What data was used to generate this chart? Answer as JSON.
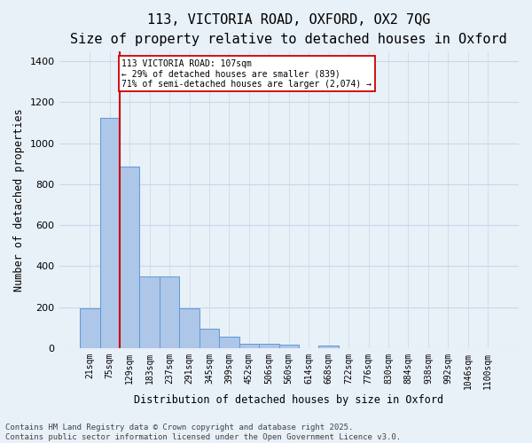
{
  "title_line1": "113, VICTORIA ROAD, OXFORD, OX2 7QG",
  "title_line2": "Size of property relative to detached houses in Oxford",
  "xlabel": "Distribution of detached houses by size in Oxford",
  "ylabel": "Number of detached properties",
  "categories": [
    "21sqm",
    "75sqm",
    "129sqm",
    "183sqm",
    "237sqm",
    "291sqm",
    "345sqm",
    "399sqm",
    "452sqm",
    "506sqm",
    "560sqm",
    "614sqm",
    "668sqm",
    "722sqm",
    "776sqm",
    "830sqm",
    "884sqm",
    "938sqm",
    "992sqm",
    "1046sqm",
    "1100sqm"
  ],
  "values": [
    195,
    1125,
    885,
    350,
    350,
    195,
    95,
    58,
    22,
    22,
    18,
    0,
    12,
    0,
    0,
    0,
    0,
    0,
    0,
    0,
    0
  ],
  "bar_color": "#aec6e8",
  "bar_edge_color": "#5b9bd5",
  "vline_color": "#cc0000",
  "annotation_text": "113 VICTORIA ROAD: 107sqm\n← 29% of detached houses are smaller (839)\n71% of semi-detached houses are larger (2,074) →",
  "annotation_box_color": "#ffffff",
  "annotation_box_edge": "#cc0000",
  "ylim": [
    0,
    1450
  ],
  "yticks": [
    0,
    200,
    400,
    600,
    800,
    1000,
    1200,
    1400
  ],
  "grid_color": "#c8d8e8",
  "background_color": "#e8f0f8",
  "footer_line1": "Contains HM Land Registry data © Crown copyright and database right 2025.",
  "footer_line2": "Contains public sector information licensed under the Open Government Licence v3.0.",
  "title_fontsize": 11,
  "subtitle_fontsize": 9,
  "tick_fontsize": 7,
  "label_fontsize": 8.5,
  "footer_fontsize": 6.5
}
